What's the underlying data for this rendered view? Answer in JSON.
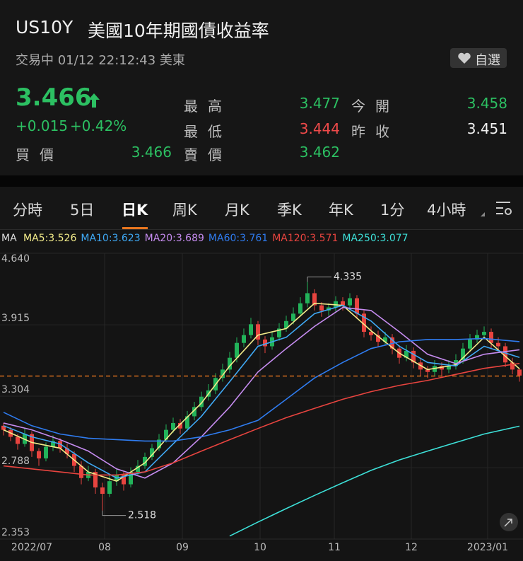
{
  "header": {
    "symbol": "US10Y",
    "name": "美國10年期國債收益率",
    "status": "交易中 01/12 22:12:43 美東",
    "watch_button": "自選"
  },
  "quote": {
    "price": 3.466,
    "change": "+0.015",
    "change_pct": "+0.42%",
    "fields": [
      {
        "label": "買價",
        "value": 3.466
      },
      {
        "label": "最高",
        "value": 3.477
      },
      {
        "label": "今開",
        "value": 3.458
      },
      {
        "label": "最低",
        "value": 3.444
      },
      {
        "label": "昨收",
        "value": 3.451
      },
      {
        "label": "賣價",
        "value": 3.462
      }
    ]
  },
  "tabs": [
    "分時",
    "5日",
    "日K",
    "周K",
    "月K",
    "季K",
    "年K",
    "1分",
    "4小時"
  ],
  "active_tab": 2,
  "chart_data": {
    "type": "candlestick",
    "indicator": "MA",
    "log_y": true,
    "grid": true,
    "up_color": "#22b35a",
    "down_color": "#e8443f",
    "price_line_color": "#e8761f",
    "ylim": [
      2.353,
      4.64
    ],
    "yticks": [
      4.64,
      3.915,
      3.304,
      2.788,
      2.353
    ],
    "yticks_labels": [
      "4.640",
      "3.915",
      "3.304",
      "2.788",
      "2.353"
    ],
    "xticks": [
      {
        "value": 4,
        "label": "2022/07"
      },
      {
        "value": 14.3,
        "label": "08"
      },
      {
        "value": 25.3,
        "label": "09"
      },
      {
        "value": 36.3,
        "label": "10"
      },
      {
        "value": 46.8,
        "label": "11"
      },
      {
        "value": 57.7,
        "label": "12"
      },
      {
        "value": 68.5,
        "label": "2023/01"
      }
    ],
    "high_label": "4.335",
    "low_label": "2.518",
    "candles": [
      [
        3.08,
        3.1,
        3.01,
        3.05
      ],
      [
        3.05,
        3.07,
        2.97,
        3.0
      ],
      [
        3.0,
        3.02,
        2.91,
        2.95
      ],
      [
        2.95,
        3.06,
        2.93,
        3.02
      ],
      [
        3.02,
        3.04,
        2.86,
        2.9
      ],
      [
        2.9,
        2.92,
        2.8,
        2.85
      ],
      [
        2.85,
        2.96,
        2.83,
        2.93
      ],
      [
        2.93,
        3.01,
        2.9,
        2.97
      ],
      [
        2.97,
        2.99,
        2.89,
        2.92
      ],
      [
        2.92,
        2.95,
        2.85,
        2.88
      ],
      [
        2.88,
        2.9,
        2.76,
        2.8
      ],
      [
        2.8,
        2.83,
        2.68,
        2.72
      ],
      [
        2.72,
        2.8,
        2.7,
        2.76
      ],
      [
        2.76,
        2.78,
        2.62,
        2.66
      ],
      [
        2.66,
        2.69,
        2.518,
        2.62
      ],
      [
        2.62,
        2.74,
        2.6,
        2.7
      ],
      [
        2.7,
        2.78,
        2.67,
        2.74
      ],
      [
        2.74,
        2.76,
        2.64,
        2.68
      ],
      [
        2.68,
        2.79,
        2.66,
        2.76
      ],
      [
        2.76,
        2.84,
        2.74,
        2.8
      ],
      [
        2.8,
        2.89,
        2.78,
        2.86
      ],
      [
        2.86,
        2.95,
        2.84,
        2.92
      ],
      [
        2.92,
        3.02,
        2.9,
        2.98
      ],
      [
        2.98,
        3.09,
        2.96,
        3.05
      ],
      [
        3.05,
        3.14,
        3.03,
        3.1
      ],
      [
        3.1,
        3.13,
        3.02,
        3.06
      ],
      [
        3.06,
        3.19,
        3.04,
        3.15
      ],
      [
        3.15,
        3.26,
        3.12,
        3.22
      ],
      [
        3.22,
        3.34,
        3.19,
        3.3
      ],
      [
        3.3,
        3.4,
        3.27,
        3.35
      ],
      [
        3.35,
        3.49,
        3.32,
        3.45
      ],
      [
        3.45,
        3.57,
        3.42,
        3.52
      ],
      [
        3.52,
        3.67,
        3.49,
        3.62
      ],
      [
        3.62,
        3.8,
        3.58,
        3.75
      ],
      [
        3.75,
        3.88,
        3.71,
        3.82
      ],
      [
        3.82,
        3.98,
        3.79,
        3.92
      ],
      [
        3.92,
        3.95,
        3.73,
        3.78
      ],
      [
        3.78,
        3.81,
        3.66,
        3.72
      ],
      [
        3.72,
        3.85,
        3.69,
        3.8
      ],
      [
        3.8,
        3.93,
        3.77,
        3.88
      ],
      [
        3.88,
        4.0,
        3.85,
        3.95
      ],
      [
        3.95,
        4.08,
        3.92,
        4.02
      ],
      [
        4.02,
        4.18,
        3.99,
        4.12
      ],
      [
        4.12,
        4.335,
        4.08,
        4.22
      ],
      [
        4.22,
        4.26,
        4.05,
        4.1
      ],
      [
        4.1,
        4.13,
        3.99,
        4.05
      ],
      [
        4.05,
        4.12,
        4.0,
        4.08
      ],
      [
        4.08,
        4.19,
        4.04,
        4.14
      ],
      [
        4.14,
        4.18,
        4.05,
        4.1
      ],
      [
        4.1,
        4.22,
        4.06,
        4.17
      ],
      [
        4.17,
        4.2,
        3.97,
        4.02
      ],
      [
        4.02,
        4.05,
        3.8,
        3.85
      ],
      [
        3.85,
        3.9,
        3.77,
        3.82
      ],
      [
        3.82,
        3.86,
        3.71,
        3.76
      ],
      [
        3.76,
        3.85,
        3.73,
        3.8
      ],
      [
        3.8,
        3.83,
        3.65,
        3.7
      ],
      [
        3.7,
        3.73,
        3.57,
        3.62
      ],
      [
        3.62,
        3.73,
        3.59,
        3.68
      ],
      [
        3.68,
        3.71,
        3.53,
        3.58
      ],
      [
        3.58,
        3.61,
        3.47,
        3.52
      ],
      [
        3.52,
        3.55,
        3.45,
        3.5
      ],
      [
        3.5,
        3.6,
        3.47,
        3.55
      ],
      [
        3.55,
        3.58,
        3.47,
        3.52
      ],
      [
        3.52,
        3.6,
        3.49,
        3.55
      ],
      [
        3.55,
        3.65,
        3.52,
        3.6
      ],
      [
        3.6,
        3.75,
        3.57,
        3.7
      ],
      [
        3.7,
        3.83,
        3.67,
        3.78
      ],
      [
        3.78,
        3.87,
        3.75,
        3.82
      ],
      [
        3.82,
        3.9,
        3.78,
        3.85
      ],
      [
        3.85,
        3.88,
        3.7,
        3.75
      ],
      [
        3.75,
        3.8,
        3.68,
        3.72
      ],
      [
        3.72,
        3.75,
        3.54,
        3.58
      ],
      [
        3.58,
        3.62,
        3.48,
        3.52
      ],
      [
        3.52,
        3.53,
        3.42,
        3.47
      ]
    ],
    "ma_x": [
      0,
      4,
      8,
      12,
      16,
      20,
      24,
      28,
      32,
      36,
      40,
      44,
      48,
      52,
      56,
      60,
      64,
      68,
      73
    ],
    "series": [
      {
        "name": "MA5:3.526",
        "color": "#f3ec8a",
        "values": [
          3.05,
          2.96,
          2.92,
          2.76,
          2.7,
          2.82,
          3.04,
          3.25,
          3.55,
          3.82,
          3.88,
          4.12,
          4.1,
          3.86,
          3.66,
          3.52,
          3.56,
          3.8,
          3.526
        ]
      },
      {
        "name": "MA10:3.623",
        "color": "#3fa9f5",
        "values": [
          3.08,
          3.0,
          2.95,
          2.82,
          2.72,
          2.76,
          2.95,
          3.15,
          3.42,
          3.72,
          3.8,
          4.02,
          4.1,
          3.95,
          3.72,
          3.58,
          3.55,
          3.72,
          3.623
        ]
      },
      {
        "name": "MA20:3.689",
        "color": "#c68cf0",
        "values": [
          3.1,
          3.05,
          2.98,
          2.9,
          2.78,
          2.72,
          2.82,
          3.0,
          3.22,
          3.5,
          3.7,
          3.9,
          4.08,
          4.05,
          3.85,
          3.65,
          3.57,
          3.65,
          3.689
        ]
      },
      {
        "name": "MA60:3.761",
        "color": "#2f7cf0",
        "values": [
          3.18,
          3.08,
          3.02,
          2.99,
          2.98,
          2.97,
          2.97,
          3.0,
          3.05,
          3.12,
          3.28,
          3.45,
          3.58,
          3.7,
          3.76,
          3.78,
          3.78,
          3.79,
          3.761
        ]
      },
      {
        "name": "MA120:3.571",
        "color": "#e8443f",
        "values": [
          2.8,
          2.78,
          2.76,
          2.74,
          2.74,
          2.76,
          2.82,
          2.9,
          2.98,
          3.06,
          3.14,
          3.21,
          3.28,
          3.34,
          3.39,
          3.43,
          3.48,
          3.53,
          3.571
        ]
      },
      {
        "name": "MA250:3.077",
        "color": "#3de0d8",
        "values": [
          null,
          null,
          null,
          null,
          null,
          null,
          null,
          null,
          2.37,
          2.45,
          2.53,
          2.61,
          2.69,
          2.77,
          2.84,
          2.9,
          2.96,
          3.02,
          3.077
        ]
      }
    ]
  }
}
